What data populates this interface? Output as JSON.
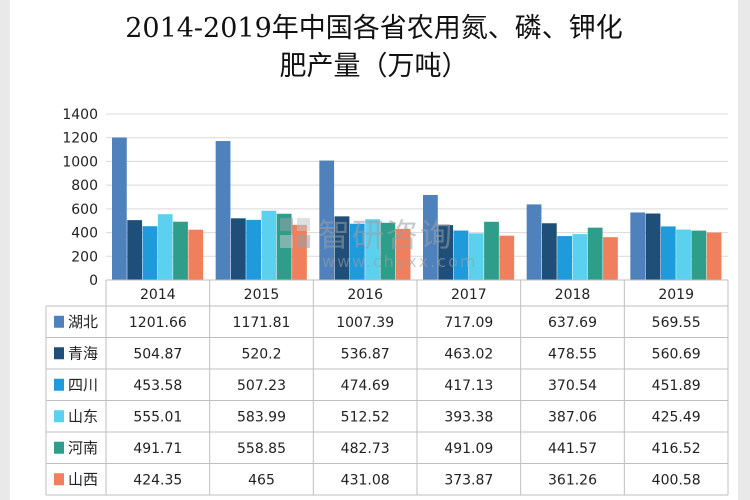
{
  "chart_data": {
    "type": "bar",
    "title_lines": [
      "2014-2019年中国各省农用氮、磷、钾化",
      "肥产量（万吨）"
    ],
    "categories": [
      "2014",
      "2015",
      "2016",
      "2017",
      "2018",
      "2019"
    ],
    "yticks": [
      "1400",
      "1200",
      "1000",
      "800",
      "600",
      "400",
      "200",
      "0"
    ],
    "ylim": [
      0,
      1400
    ],
    "series": [
      {
        "name": "湖北",
        "color": "#4f81bd",
        "values": [
          1201.66,
          1171.81,
          1007.39,
          717.09,
          637.69,
          569.55
        ],
        "labels": [
          "1201.66",
          "1171.81",
          "1007.39",
          "717.09",
          "637.69",
          "569.55"
        ]
      },
      {
        "name": "青海",
        "color": "#1f4e79",
        "values": [
          504.87,
          520.2,
          536.87,
          463.02,
          478.55,
          560.69
        ],
        "labels": [
          "504.87",
          "520.2",
          "536.87",
          "463.02",
          "478.55",
          "560.69"
        ]
      },
      {
        "name": "四川",
        "color": "#1f9bdc",
        "values": [
          453.58,
          507.23,
          474.69,
          417.13,
          370.54,
          451.89
        ],
        "labels": [
          "453.58",
          "507.23",
          "474.69",
          "417.13",
          "370.54",
          "451.89"
        ]
      },
      {
        "name": "山东",
        "color": "#5bd0ef",
        "values": [
          555.01,
          583.99,
          512.52,
          393.38,
          387.06,
          425.49
        ],
        "labels": [
          "555.01",
          "583.99",
          "512.52",
          "393.38",
          "387.06",
          "425.49"
        ]
      },
      {
        "name": "河南",
        "color": "#2e9e8a",
        "values": [
          491.71,
          558.85,
          482.73,
          491.09,
          441.57,
          416.52
        ],
        "labels": [
          "491.71",
          "558.85",
          "482.73",
          "491.09",
          "441.57",
          "416.52"
        ]
      },
      {
        "name": "山西",
        "color": "#f07f5e",
        "values": [
          424.35,
          465,
          431.08,
          373.87,
          361.26,
          400.58
        ],
        "labels": [
          "424.35",
          "465",
          "431.08",
          "373.87",
          "361.26",
          "400.58"
        ]
      }
    ]
  },
  "watermark": {
    "name": "智研咨询",
    "url": "www.chyxx.com"
  }
}
